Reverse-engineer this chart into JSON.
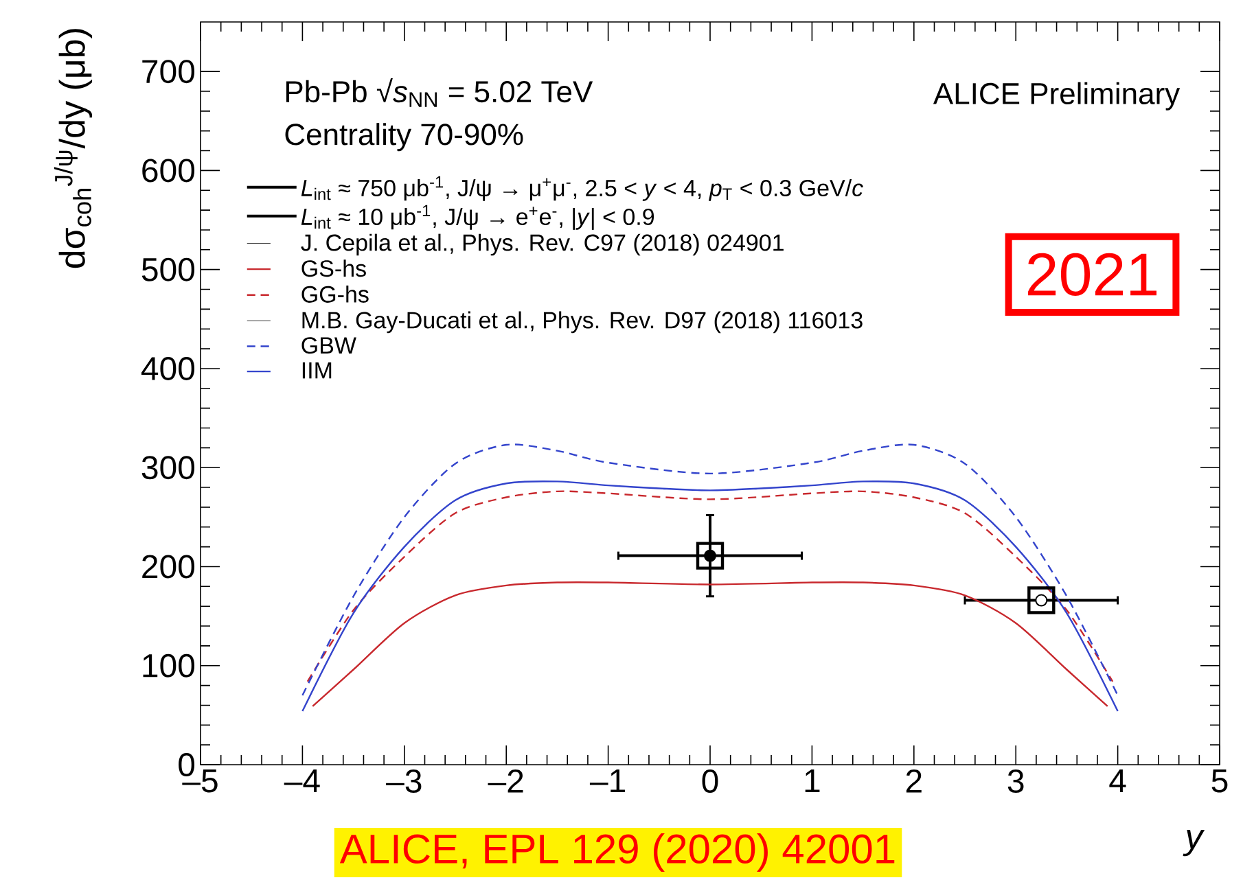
{
  "chart_data": {
    "type": "line",
    "xlabel": "*y*",
    "ylabel": "dσ$_{coh}$$^{J/ψ}$/dy (μb)",
    "xlim": [
      -5,
      5
    ],
    "ylim": [
      0,
      750
    ],
    "xticks": [
      {
        "value": -5,
        "label": "–5"
      },
      {
        "value": -4,
        "label": "–4"
      },
      {
        "value": -3,
        "label": "–3"
      },
      {
        "value": -2,
        "label": "–2"
      },
      {
        "value": -1,
        "label": "–1"
      },
      0,
      1,
      2,
      3,
      4,
      5
    ],
    "yticks": [
      0,
      100,
      200,
      300,
      400,
      500,
      600,
      700
    ],
    "legend": "top left",
    "annotations": [
      "Pb-Pb √*s*$_{NN}$ = 5.02 TeV",
      "Centrality 70-90%",
      "ALICE Preliminary",
      "J. Cepila et al., Phys. Rev. C97 (2018) 024901",
      "M.B. Gay-Ducati et al., Phys. Rev. D97 (2018) 116013",
      "2021",
      "ALICE, EPL 129 (2020) 42001"
    ],
    "series": [
      {
        "type": "scatter",
        "name": "*L*$_{int}$ ≈ 750 μb$^{-1}$, J/ψ → μ$^{+}$μ$^{-}$, 2.5 < *y* < 4, *p*$_{T}$ < 0.3 GeV/*c*",
        "color": "#000000",
        "x": [
          3.25
        ],
        "values": [
          166
        ],
        "xerrors": [
          [
            2.5,
            4
          ]
        ]
      },
      {
        "type": "scatter",
        "name": "*L*$_{int}$ ≈ 10 μb$^{-1}$, J/ψ → e$^{+}$e$^{-}$, |*y*| < 0.9",
        "color": "#000000",
        "x": [
          0
        ],
        "values": [
          211
        ],
        "errors": [
          [
            170,
            252
          ]
        ],
        "xerrors": [
          [
            -0.9,
            0.9
          ]
        ]
      },
      {
        "type": "scatter",
        "color": "#000000",
        "marker": "square",
        "x": [
          0,
          3.25
        ],
        "values": [
          211,
          166
        ]
      },
      {
        "name": "GS-hs",
        "color": "#c8282d",
        "line_style": "solid",
        "x": [
          -3.9,
          -3.5,
          -3,
          -2.5,
          -2,
          -1.5,
          -1,
          0,
          1,
          1.5,
          2,
          2.5,
          3,
          3.5,
          3.9
        ],
        "values": [
          59,
          96,
          143,
          171,
          181,
          184,
          184,
          182,
          184,
          184,
          181,
          171,
          143,
          96,
          59
        ]
      },
      {
        "name": "GG-hs",
        "color": "#c8282d",
        "line_style": "dashed",
        "x": [
          -3.95,
          -3.5,
          -3,
          -2.5,
          -2,
          -1.5,
          -1,
          0,
          1,
          1.5,
          2,
          2.5,
          3,
          3.5,
          3.95
        ],
        "values": [
          84,
          156,
          210,
          254,
          270,
          276,
          274,
          268,
          274,
          276,
          270,
          254,
          210,
          156,
          84
        ]
      },
      {
        "name": "GBW",
        "color": "#3344cc",
        "line_style": "dashed",
        "x": [
          -4,
          -3.5,
          -3,
          -2.5,
          -2,
          -1.5,
          -1,
          0,
          1,
          1.5,
          2,
          2.5,
          3,
          3.5,
          4
        ],
        "values": [
          70,
          170,
          250,
          304,
          323,
          317,
          305,
          294,
          305,
          317,
          323,
          304,
          250,
          170,
          70
        ]
      },
      {
        "name": "IIM",
        "color": "#3344cc",
        "line_style": "solid",
        "x": [
          -4,
          -3.5,
          -3,
          -2.5,
          -2,
          -1.5,
          -1,
          -0.5,
          0,
          0.5,
          1,
          1.5,
          2,
          2.5,
          3,
          3.5,
          4
        ],
        "values": [
          54,
          153,
          220,
          267,
          284,
          286,
          282,
          279,
          277,
          279,
          282,
          286,
          284,
          267,
          220,
          153,
          54
        ]
      }
    ]
  }
}
